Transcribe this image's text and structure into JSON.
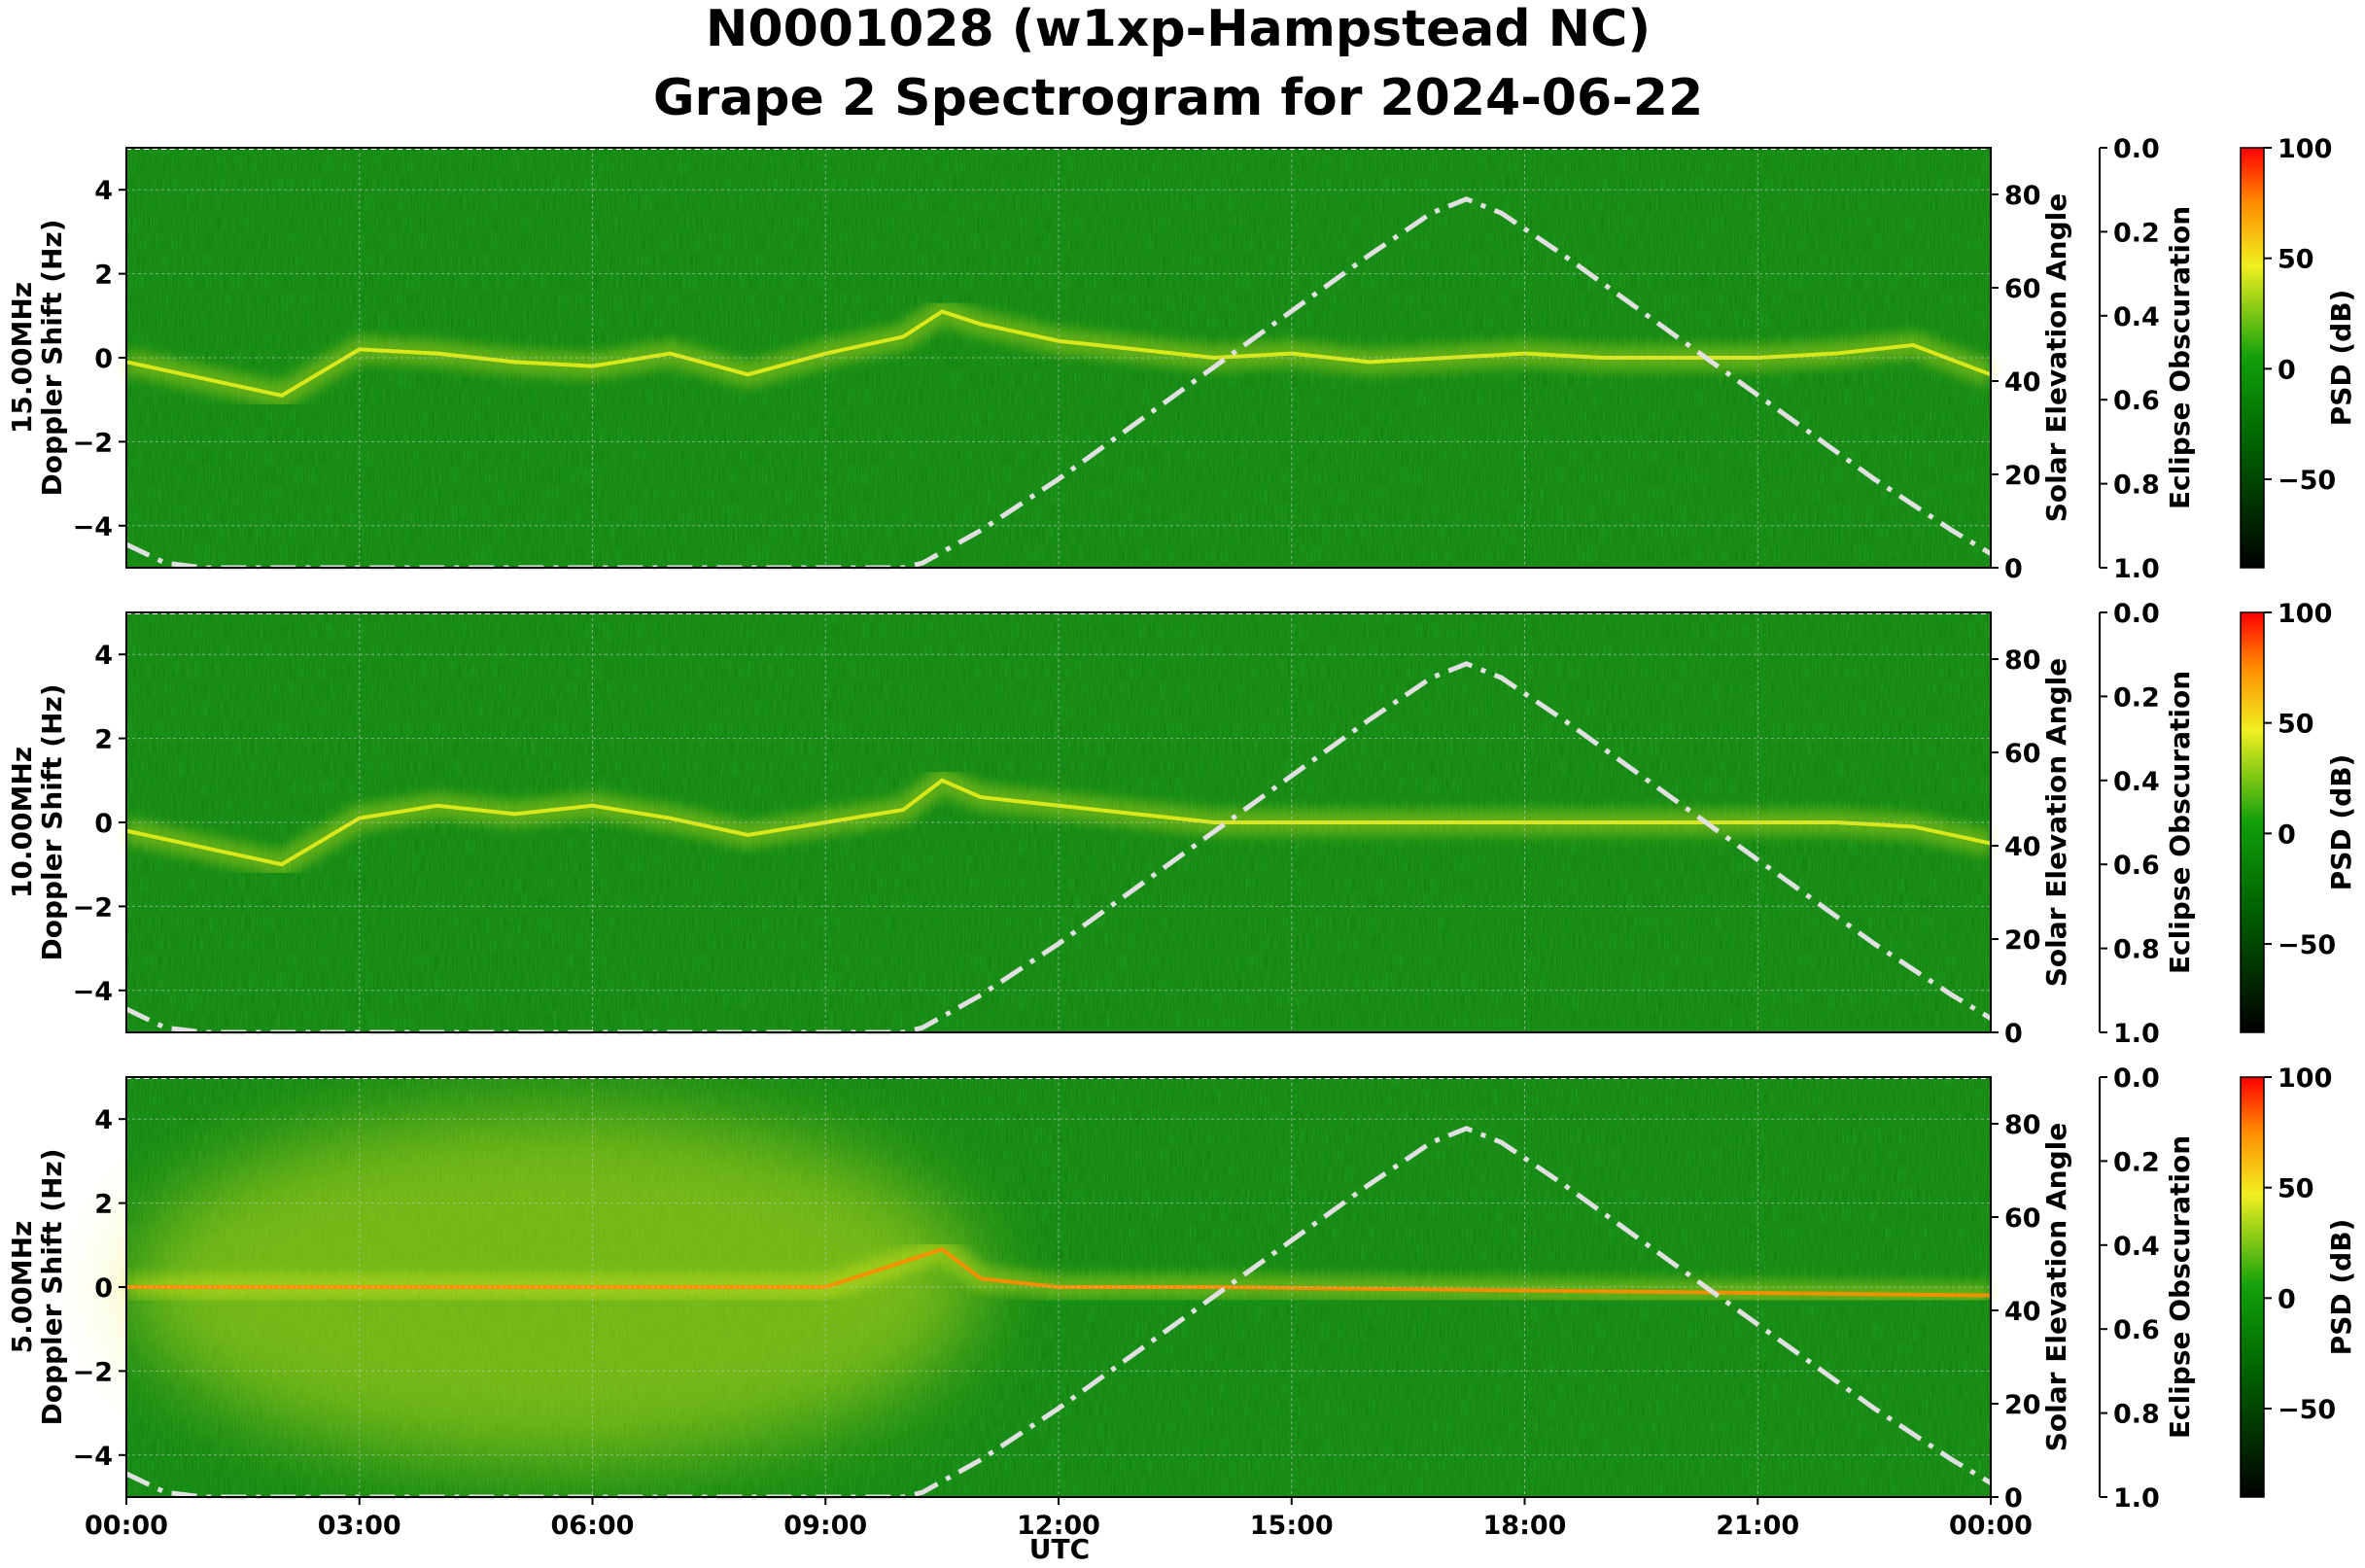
{
  "title": {
    "line1": "N0001028 (w1xp-Hampstead NC)",
    "line2": "Grape 2 Spectrogram for 2024-06-22"
  },
  "colors": {
    "background_green": "#0d7d0a",
    "trace_yellow": "#e6ee1c",
    "trace_orange": "#ff8c00",
    "hot_red": "#ff2200",
    "solar_curve": "#e0e0e0"
  },
  "chart_data": [
    {
      "type": "heatmap",
      "frequency_label": "15.00MHz",
      "ylabel": "Doppler Shift (Hz)",
      "ylim": [
        -5,
        5
      ],
      "yticks": [
        "4",
        "2",
        "0",
        "−2",
        "−4"
      ],
      "right_axis_label": "Solar Elevation Angle",
      "right_axis_ticks": [
        "80",
        "60",
        "40",
        "20",
        "0"
      ],
      "eclipse_axis_label": "Eclipse Obscuration",
      "eclipse_axis_ticks": [
        "0.0",
        "0.2",
        "0.4",
        "0.6",
        "0.8",
        "1.0"
      ],
      "colorbar_label": "PSD (dB)",
      "colorbar_ticks": [
        "100",
        "50",
        "0",
        "−50"
      ],
      "grid": true,
      "doppler_trace": [
        [
          0,
          -0.1
        ],
        [
          1,
          -0.5
        ],
        [
          2,
          -0.9
        ],
        [
          3,
          0.2
        ],
        [
          4,
          0.1
        ],
        [
          5,
          -0.1
        ],
        [
          6,
          -0.2
        ],
        [
          7,
          0.1
        ],
        [
          8,
          -0.4
        ],
        [
          9,
          0.1
        ],
        [
          10,
          0.5
        ],
        [
          10.5,
          1.1
        ],
        [
          11,
          0.8
        ],
        [
          12,
          0.4
        ],
        [
          13,
          0.2
        ],
        [
          14,
          0.0
        ],
        [
          15,
          0.1
        ],
        [
          16,
          -0.1
        ],
        [
          17,
          0.0
        ],
        [
          18,
          0.1
        ],
        [
          19,
          0.0
        ],
        [
          20,
          0.0
        ],
        [
          21,
          0.0
        ],
        [
          22,
          0.1
        ],
        [
          23,
          0.3
        ],
        [
          24,
          -0.4
        ]
      ]
    },
    {
      "type": "heatmap",
      "frequency_label": "10.00MHz",
      "ylabel": "Doppler Shift (Hz)",
      "ylim": [
        -5,
        5
      ],
      "yticks": [
        "4",
        "2",
        "0",
        "−2",
        "−4"
      ],
      "right_axis_label": "Solar Elevation Angle",
      "right_axis_ticks": [
        "80",
        "60",
        "40",
        "20",
        "0"
      ],
      "eclipse_axis_label": "Eclipse Obscuration",
      "eclipse_axis_ticks": [
        "0.0",
        "0.2",
        "0.4",
        "0.6",
        "0.8",
        "1.0"
      ],
      "colorbar_label": "PSD (dB)",
      "colorbar_ticks": [
        "100",
        "50",
        "0",
        "−50"
      ],
      "grid": true,
      "doppler_trace": [
        [
          0,
          -0.2
        ],
        [
          1,
          -0.6
        ],
        [
          2,
          -1.0
        ],
        [
          3,
          0.1
        ],
        [
          4,
          0.4
        ],
        [
          5,
          0.2
        ],
        [
          6,
          0.4
        ],
        [
          7,
          0.1
        ],
        [
          8,
          -0.3
        ],
        [
          9,
          0.0
        ],
        [
          10,
          0.3
        ],
        [
          10.5,
          1.0
        ],
        [
          11,
          0.6
        ],
        [
          12,
          0.4
        ],
        [
          13,
          0.2
        ],
        [
          14,
          0.0
        ],
        [
          15,
          0.0
        ],
        [
          16,
          0.0
        ],
        [
          17,
          0.0
        ],
        [
          18,
          0.0
        ],
        [
          19,
          0.0
        ],
        [
          20,
          0.0
        ],
        [
          21,
          0.0
        ],
        [
          22,
          0.0
        ],
        [
          23,
          -0.1
        ],
        [
          24,
          -0.5
        ]
      ]
    },
    {
      "type": "heatmap",
      "frequency_label": "5.00MHz",
      "ylabel": "Doppler Shift (Hz)",
      "ylim": [
        -5,
        5
      ],
      "yticks": [
        "4",
        "2",
        "0",
        "−2",
        "−4"
      ],
      "right_axis_label": "Solar Elevation Angle",
      "right_axis_ticks": [
        "80",
        "60",
        "40",
        "20",
        "0"
      ],
      "eclipse_axis_label": "Eclipse Obscuration",
      "eclipse_axis_ticks": [
        "0.0",
        "0.2",
        "0.4",
        "0.6",
        "0.8",
        "1.0"
      ],
      "colorbar_label": "PSD (dB)",
      "colorbar_ticks": [
        "100",
        "50",
        "0",
        "−50"
      ],
      "grid": true,
      "doppler_trace": [
        [
          0,
          0.0
        ],
        [
          1,
          0.0
        ],
        [
          2,
          0.0
        ],
        [
          3,
          0.0
        ],
        [
          4,
          0.0
        ],
        [
          5,
          0.0
        ],
        [
          6,
          0.0
        ],
        [
          7,
          0.0
        ],
        [
          8,
          0.0
        ],
        [
          9,
          0.0
        ],
        [
          9.5,
          0.3
        ],
        [
          10,
          0.6
        ],
        [
          10.5,
          0.9
        ],
        [
          11,
          0.2
        ],
        [
          12,
          0.0
        ],
        [
          13,
          0.0
        ],
        [
          14,
          0.0
        ],
        [
          24,
          -0.2
        ]
      ]
    }
  ],
  "x_axis": {
    "label": "UTC",
    "ticks": [
      "00:00",
      "03:00",
      "06:00",
      "09:00",
      "12:00",
      "15:00",
      "18:00",
      "21:00",
      "00:00"
    ],
    "range_hours": [
      0,
      24
    ]
  },
  "solar_elevation": {
    "range_deg": [
      0,
      90
    ],
    "points": [
      [
        0,
        5
      ],
      [
        0.5,
        1
      ],
      [
        1,
        0
      ],
      [
        10,
        0
      ],
      [
        10.25,
        1
      ],
      [
        11,
        8
      ],
      [
        12,
        19
      ],
      [
        13,
        31
      ],
      [
        14,
        43
      ],
      [
        15,
        55
      ],
      [
        16,
        67
      ],
      [
        16.8,
        76
      ],
      [
        17.25,
        79
      ],
      [
        17.7,
        76
      ],
      [
        18.5,
        67
      ],
      [
        19.5,
        55
      ],
      [
        20.5,
        43
      ],
      [
        21.5,
        31
      ],
      [
        22.5,
        19
      ],
      [
        23.5,
        8
      ],
      [
        24,
        3
      ]
    ]
  }
}
